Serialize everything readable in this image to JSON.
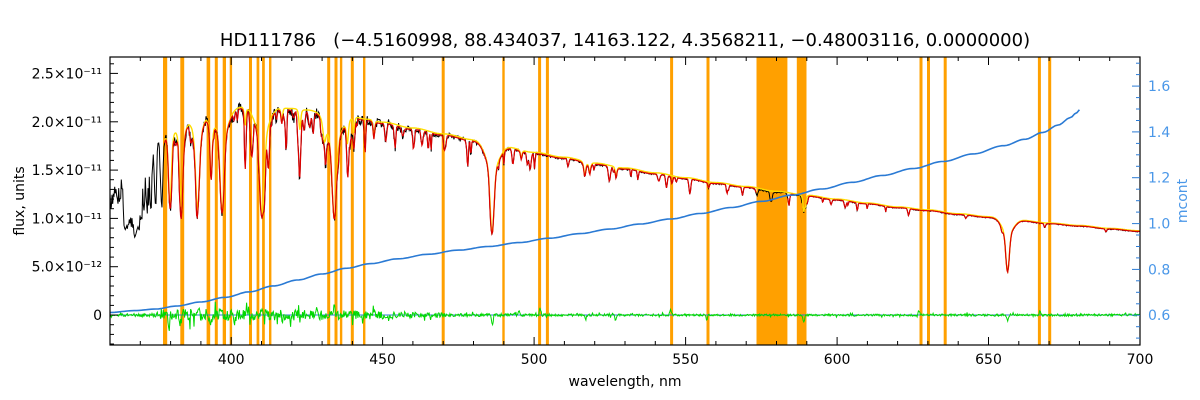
{
  "chart_data": {
    "type": "line",
    "title": "HD111786   (−4.5160998, 88.434037, 14163.122, 4.3568211, −0.48003116, 0.0000000)",
    "xlabel": "wavelength, nm",
    "ylabel_left": "flux, units",
    "ylabel_right": "mcont",
    "legend": "none",
    "grid": false,
    "x_axis": {
      "range": [
        360,
        700
      ],
      "major_ticks": [
        400,
        450,
        500,
        550,
        600,
        650,
        700
      ],
      "minor_step": 10
    },
    "flux_axis": {
      "range_e12": [
        -3.1,
        26.7
      ],
      "major_ticks_e12": [
        0,
        5,
        10,
        15,
        20,
        25
      ],
      "tick_labels": [
        "0",
        "5.0×10⁻¹²",
        "1.0×10⁻¹¹",
        "1.5×10⁻¹¹",
        "2.0×10⁻¹¹",
        "2.5×10⁻¹¹"
      ],
      "minor_step_e12": 1
    },
    "mcont_axis": {
      "range": [
        0.47,
        1.727
      ],
      "major_ticks": [
        0.6,
        0.8,
        1.0,
        1.2,
        1.4,
        1.6
      ],
      "tick_labels": [
        "0.6",
        "0.8",
        "1.0",
        "1.2",
        "1.4",
        "1.6"
      ],
      "minor_step": 0.05
    },
    "colors": {
      "spectrum": "#000000",
      "fit": "#dd0000",
      "continuum_fit": "#ffdd00",
      "mcont_curve": "#2a7ad4",
      "mcont_axis_text": "#4a97e8",
      "residual": "#00d800",
      "mask_band": "#ffa000",
      "frame": "#000000",
      "background": "#ffffff"
    },
    "continuum_e12": [
      [
        360,
        12.0
      ],
      [
        364,
        13.2
      ],
      [
        368,
        16.0
      ],
      [
        372,
        18.4
      ],
      [
        376,
        19.9
      ],
      [
        380,
        20.3
      ],
      [
        385,
        20.7
      ],
      [
        390,
        20.9
      ],
      [
        395,
        21.1
      ],
      [
        400,
        21.3
      ],
      [
        405,
        21.4
      ],
      [
        410,
        21.4
      ],
      [
        415,
        21.3
      ],
      [
        420,
        21.2
      ],
      [
        425,
        21.05
      ],
      [
        430,
        20.85
      ],
      [
        435,
        20.6
      ],
      [
        440,
        20.35
      ],
      [
        445,
        20.1
      ],
      [
        450,
        19.8
      ],
      [
        460,
        19.2
      ],
      [
        470,
        18.6
      ],
      [
        480,
        18.0
      ],
      [
        490,
        17.3
      ],
      [
        500,
        16.7
      ],
      [
        510,
        16.2
      ],
      [
        520,
        15.6
      ],
      [
        530,
        15.1
      ],
      [
        540,
        14.6
      ],
      [
        550,
        14.1
      ],
      [
        560,
        13.6
      ],
      [
        570,
        13.2
      ],
      [
        580,
        12.7
      ],
      [
        590,
        12.3
      ],
      [
        600,
        11.9
      ],
      [
        610,
        11.5
      ],
      [
        620,
        11.1
      ],
      [
        630,
        10.8
      ],
      [
        640,
        10.4
      ],
      [
        650,
        10.1
      ],
      [
        660,
        9.75
      ],
      [
        670,
        9.45
      ],
      [
        680,
        9.2
      ],
      [
        690,
        8.9
      ],
      [
        700,
        8.65
      ]
    ],
    "absorption_lines": [
      [
        656.28,
        0.55,
        0.8,
        2.6
      ],
      [
        486.13,
        0.52,
        0.9,
        3.0
      ],
      [
        434.05,
        0.52,
        1.0,
        3.2
      ],
      [
        410.17,
        0.52,
        1.0,
        3.0
      ],
      [
        397.01,
        0.5,
        0.9,
        2.8
      ],
      [
        393.37,
        0.32,
        0.45,
        1.1
      ],
      [
        388.9,
        0.48,
        0.85,
        2.4
      ],
      [
        383.54,
        0.46,
        0.75,
        2.0
      ],
      [
        379.79,
        0.44,
        0.65,
        1.6
      ],
      [
        377.06,
        0.43,
        0.55,
        1.3
      ],
      [
        375.02,
        0.42,
        0.5,
        1.1
      ],
      [
        373.44,
        0.41,
        0.45,
        0.95
      ],
      [
        372.19,
        0.4,
        0.42,
        0.85
      ],
      [
        371.2,
        0.39,
        0.4,
        0.75
      ],
      [
        370.39,
        0.38,
        0.38,
        0.65
      ],
      [
        369.76,
        0.37,
        0.35,
        0.6
      ],
      [
        369.23,
        0.36,
        0.33,
        0.55
      ],
      [
        368.8,
        0.35,
        0.32,
        0.5
      ],
      [
        368.43,
        0.34,
        0.3,
        0.45
      ],
      [
        368.11,
        0.33,
        0.3,
        0.42
      ],
      [
        367.83,
        0.32,
        0.28,
        0.4
      ],
      [
        367.4,
        0.32,
        0.28,
        0.4
      ],
      [
        367.0,
        0.31,
        0.28,
        0.4
      ],
      [
        366.6,
        0.3,
        0.28,
        0.4
      ],
      [
        366.2,
        0.3,
        0.28,
        0.4
      ],
      [
        365.8,
        0.3,
        0.28,
        0.4
      ],
      [
        365.4,
        0.29,
        0.28,
        0.4
      ],
      [
        365.0,
        0.29,
        0.28,
        0.4
      ],
      [
        364.6,
        0.29,
        0.28,
        0.4
      ],
      [
        430.79,
        0.1,
        0.6,
        1.2
      ],
      [
        438.35,
        0.12,
        0.4,
        0.8
      ],
      [
        440.48,
        0.08,
        0.3,
        0.6
      ],
      [
        447.1,
        0.09,
        0.3,
        0.6
      ],
      [
        422.67,
        0.1,
        0.35,
        0.7
      ],
      [
        404.58,
        0.09,
        0.3,
        0.6
      ],
      [
        416.7,
        0.07,
        0.3,
        0.6
      ],
      [
        516.73,
        0.09,
        0.4,
        0.8
      ],
      [
        518.36,
        0.07,
        0.35,
        0.7
      ],
      [
        527.04,
        0.07,
        0.3,
        0.6
      ],
      [
        588.99,
        0.13,
        0.3,
        0.6
      ],
      [
        589.59,
        0.09,
        0.3,
        0.6
      ],
      [
        495.76,
        0.05,
        0.3,
        0.6
      ]
    ],
    "mask_bands_nm": [
      [
        377.5,
        378.9
      ],
      [
        383.2,
        384.5
      ],
      [
        391.9,
        393.1
      ],
      [
        394.6,
        395.6
      ],
      [
        397.2,
        398.3
      ],
      [
        399.5,
        400.3
      ],
      [
        405.9,
        406.9
      ],
      [
        408.4,
        409.3
      ],
      [
        410.2,
        411.1
      ],
      [
        412.5,
        413.3
      ],
      [
        431.7,
        432.7
      ],
      [
        434.1,
        435.1
      ],
      [
        435.9,
        436.7
      ],
      [
        439.5,
        440.5
      ],
      [
        443.5,
        444.3
      ],
      [
        469.5,
        470.5
      ],
      [
        489.5,
        490.3
      ],
      [
        501.3,
        502.3
      ],
      [
        503.9,
        504.9
      ],
      [
        544.9,
        545.9
      ],
      [
        556.9,
        557.9
      ],
      [
        573.4,
        583.6
      ],
      [
        586.7,
        589.9
      ],
      [
        627.2,
        628.2
      ],
      [
        629.7,
        630.7
      ],
      [
        635.2,
        636.2
      ],
      [
        666.3,
        667.3
      ],
      [
        669.7,
        670.7
      ]
    ],
    "fit_range_nm": [
      378,
      700
    ],
    "mcont_curve": [
      [
        360,
        0.612
      ],
      [
        368,
        0.62
      ],
      [
        375,
        0.627
      ],
      [
        382,
        0.64
      ],
      [
        390,
        0.658
      ],
      [
        398,
        0.678
      ],
      [
        406,
        0.702
      ],
      [
        414,
        0.728
      ],
      [
        422,
        0.754
      ],
      [
        430,
        0.78
      ],
      [
        438,
        0.805
      ],
      [
        446,
        0.825
      ],
      [
        455,
        0.846
      ],
      [
        465,
        0.866
      ],
      [
        475,
        0.884
      ],
      [
        485,
        0.9
      ],
      [
        495,
        0.917
      ],
      [
        505,
        0.936
      ],
      [
        515,
        0.956
      ],
      [
        525,
        0.976
      ],
      [
        535,
        0.998
      ],
      [
        545,
        1.02
      ],
      [
        555,
        1.044
      ],
      [
        565,
        1.07
      ],
      [
        575,
        1.097
      ],
      [
        585,
        1.124
      ],
      [
        595,
        1.151
      ],
      [
        605,
        1.18
      ],
      [
        615,
        1.21
      ],
      [
        625,
        1.24
      ],
      [
        635,
        1.271
      ],
      [
        645,
        1.304
      ],
      [
        655,
        1.34
      ],
      [
        662,
        1.368
      ],
      [
        668,
        1.398
      ],
      [
        673,
        1.43
      ],
      [
        677,
        1.462
      ],
      [
        679,
        1.483
      ],
      [
        680,
        1.497
      ],
      [
        680.5,
        1.503
      ]
    ],
    "residual_zero_e12": 0,
    "residual_spikes_e12": [
      [
        379.5,
        -1.4
      ],
      [
        383.3,
        -1.0
      ],
      [
        389.0,
        0.8
      ],
      [
        393.3,
        -1.2
      ],
      [
        397.0,
        0.9
      ],
      [
        401.0,
        -0.7
      ],
      [
        405.0,
        0.8
      ],
      [
        410.5,
        0.8
      ],
      [
        417.0,
        -0.6
      ],
      [
        422.7,
        -0.8
      ],
      [
        428.0,
        0.7
      ],
      [
        434.0,
        0.9
      ],
      [
        438.0,
        -0.7
      ],
      [
        447.0,
        0.6
      ],
      [
        486.2,
        -0.9
      ],
      [
        495.0,
        0.5
      ],
      [
        502.0,
        0.7
      ],
      [
        517.0,
        -0.5
      ],
      [
        527.0,
        -0.4
      ],
      [
        545.0,
        0.5
      ],
      [
        557.0,
        -0.5
      ],
      [
        589.0,
        -0.8
      ],
      [
        627.0,
        0.4
      ],
      [
        656.3,
        -0.7
      ],
      [
        667.0,
        0.5
      ]
    ],
    "noise": {
      "seed": 1337,
      "sample_step_nm": 0.22,
      "black_amp_frac": [
        [
          360,
          0.095
        ],
        [
          372,
          0.085
        ],
        [
          378,
          0.034
        ],
        [
          400,
          0.03
        ],
        [
          450,
          0.026
        ],
        [
          470,
          0.015
        ],
        [
          500,
          0.008
        ],
        [
          600,
          0.006
        ],
        [
          700,
          0.007
        ]
      ],
      "green_amp_e12": [
        [
          360,
          0.12
        ],
        [
          374,
          0.18
        ],
        [
          378,
          0.55
        ],
        [
          385,
          0.65
        ],
        [
          395,
          0.6
        ],
        [
          410,
          0.55
        ],
        [
          430,
          0.5
        ],
        [
          450,
          0.45
        ],
        [
          465,
          0.25
        ],
        [
          480,
          0.15
        ],
        [
          520,
          0.12
        ],
        [
          600,
          0.1
        ],
        [
          660,
          0.12
        ],
        [
          700,
          0.12
        ]
      ],
      "metal_step_nm": 0.4,
      "metal_prob": [
        [
          376,
          0.3
        ],
        [
          400,
          0.28
        ],
        [
          450,
          0.2
        ],
        [
          520,
          0.08
        ],
        [
          700,
          0.04
        ]
      ],
      "metal_depth": [
        [
          376,
          0.3
        ],
        [
          450,
          0.22
        ],
        [
          520,
          0.1
        ],
        [
          700,
          0.08
        ]
      ]
    }
  }
}
